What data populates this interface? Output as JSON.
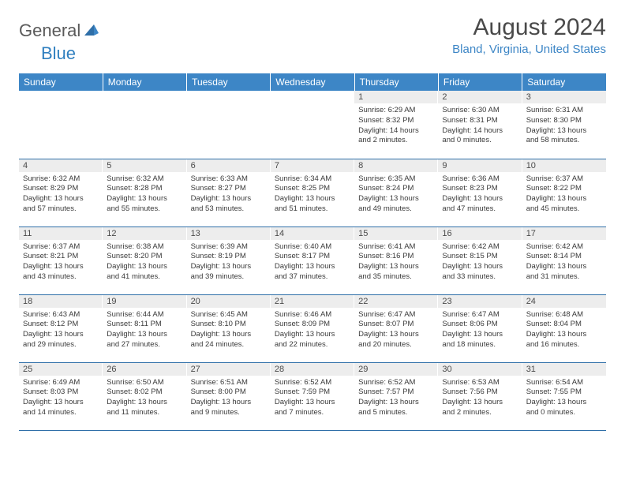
{
  "brand": {
    "part1": "General",
    "part2": "Blue"
  },
  "title": "August 2024",
  "location": "Bland, Virginia, United States",
  "colors": {
    "header_bg": "#3d86c6",
    "header_text": "#ffffff",
    "daynum_bg": "#ededed",
    "row_border": "#2f6fa8",
    "title_color": "#4a4a4a",
    "location_color": "#3d86c6",
    "logo_gray": "#5a5a5a",
    "logo_blue": "#2f7fbf"
  },
  "day_headers": [
    "Sunday",
    "Monday",
    "Tuesday",
    "Wednesday",
    "Thursday",
    "Friday",
    "Saturday"
  ],
  "weeks": [
    [
      {
        "n": "",
        "lines": []
      },
      {
        "n": "",
        "lines": []
      },
      {
        "n": "",
        "lines": []
      },
      {
        "n": "",
        "lines": []
      },
      {
        "n": "1",
        "lines": [
          "Sunrise: 6:29 AM",
          "Sunset: 8:32 PM",
          "Daylight: 14 hours",
          "and 2 minutes."
        ]
      },
      {
        "n": "2",
        "lines": [
          "Sunrise: 6:30 AM",
          "Sunset: 8:31 PM",
          "Daylight: 14 hours",
          "and 0 minutes."
        ]
      },
      {
        "n": "3",
        "lines": [
          "Sunrise: 6:31 AM",
          "Sunset: 8:30 PM",
          "Daylight: 13 hours",
          "and 58 minutes."
        ]
      }
    ],
    [
      {
        "n": "4",
        "lines": [
          "Sunrise: 6:32 AM",
          "Sunset: 8:29 PM",
          "Daylight: 13 hours",
          "and 57 minutes."
        ]
      },
      {
        "n": "5",
        "lines": [
          "Sunrise: 6:32 AM",
          "Sunset: 8:28 PM",
          "Daylight: 13 hours",
          "and 55 minutes."
        ]
      },
      {
        "n": "6",
        "lines": [
          "Sunrise: 6:33 AM",
          "Sunset: 8:27 PM",
          "Daylight: 13 hours",
          "and 53 minutes."
        ]
      },
      {
        "n": "7",
        "lines": [
          "Sunrise: 6:34 AM",
          "Sunset: 8:25 PM",
          "Daylight: 13 hours",
          "and 51 minutes."
        ]
      },
      {
        "n": "8",
        "lines": [
          "Sunrise: 6:35 AM",
          "Sunset: 8:24 PM",
          "Daylight: 13 hours",
          "and 49 minutes."
        ]
      },
      {
        "n": "9",
        "lines": [
          "Sunrise: 6:36 AM",
          "Sunset: 8:23 PM",
          "Daylight: 13 hours",
          "and 47 minutes."
        ]
      },
      {
        "n": "10",
        "lines": [
          "Sunrise: 6:37 AM",
          "Sunset: 8:22 PM",
          "Daylight: 13 hours",
          "and 45 minutes."
        ]
      }
    ],
    [
      {
        "n": "11",
        "lines": [
          "Sunrise: 6:37 AM",
          "Sunset: 8:21 PM",
          "Daylight: 13 hours",
          "and 43 minutes."
        ]
      },
      {
        "n": "12",
        "lines": [
          "Sunrise: 6:38 AM",
          "Sunset: 8:20 PM",
          "Daylight: 13 hours",
          "and 41 minutes."
        ]
      },
      {
        "n": "13",
        "lines": [
          "Sunrise: 6:39 AM",
          "Sunset: 8:19 PM",
          "Daylight: 13 hours",
          "and 39 minutes."
        ]
      },
      {
        "n": "14",
        "lines": [
          "Sunrise: 6:40 AM",
          "Sunset: 8:17 PM",
          "Daylight: 13 hours",
          "and 37 minutes."
        ]
      },
      {
        "n": "15",
        "lines": [
          "Sunrise: 6:41 AM",
          "Sunset: 8:16 PM",
          "Daylight: 13 hours",
          "and 35 minutes."
        ]
      },
      {
        "n": "16",
        "lines": [
          "Sunrise: 6:42 AM",
          "Sunset: 8:15 PM",
          "Daylight: 13 hours",
          "and 33 minutes."
        ]
      },
      {
        "n": "17",
        "lines": [
          "Sunrise: 6:42 AM",
          "Sunset: 8:14 PM",
          "Daylight: 13 hours",
          "and 31 minutes."
        ]
      }
    ],
    [
      {
        "n": "18",
        "lines": [
          "Sunrise: 6:43 AM",
          "Sunset: 8:12 PM",
          "Daylight: 13 hours",
          "and 29 minutes."
        ]
      },
      {
        "n": "19",
        "lines": [
          "Sunrise: 6:44 AM",
          "Sunset: 8:11 PM",
          "Daylight: 13 hours",
          "and 27 minutes."
        ]
      },
      {
        "n": "20",
        "lines": [
          "Sunrise: 6:45 AM",
          "Sunset: 8:10 PM",
          "Daylight: 13 hours",
          "and 24 minutes."
        ]
      },
      {
        "n": "21",
        "lines": [
          "Sunrise: 6:46 AM",
          "Sunset: 8:09 PM",
          "Daylight: 13 hours",
          "and 22 minutes."
        ]
      },
      {
        "n": "22",
        "lines": [
          "Sunrise: 6:47 AM",
          "Sunset: 8:07 PM",
          "Daylight: 13 hours",
          "and 20 minutes."
        ]
      },
      {
        "n": "23",
        "lines": [
          "Sunrise: 6:47 AM",
          "Sunset: 8:06 PM",
          "Daylight: 13 hours",
          "and 18 minutes."
        ]
      },
      {
        "n": "24",
        "lines": [
          "Sunrise: 6:48 AM",
          "Sunset: 8:04 PM",
          "Daylight: 13 hours",
          "and 16 minutes."
        ]
      }
    ],
    [
      {
        "n": "25",
        "lines": [
          "Sunrise: 6:49 AM",
          "Sunset: 8:03 PM",
          "Daylight: 13 hours",
          "and 14 minutes."
        ]
      },
      {
        "n": "26",
        "lines": [
          "Sunrise: 6:50 AM",
          "Sunset: 8:02 PM",
          "Daylight: 13 hours",
          "and 11 minutes."
        ]
      },
      {
        "n": "27",
        "lines": [
          "Sunrise: 6:51 AM",
          "Sunset: 8:00 PM",
          "Daylight: 13 hours",
          "and 9 minutes."
        ]
      },
      {
        "n": "28",
        "lines": [
          "Sunrise: 6:52 AM",
          "Sunset: 7:59 PM",
          "Daylight: 13 hours",
          "and 7 minutes."
        ]
      },
      {
        "n": "29",
        "lines": [
          "Sunrise: 6:52 AM",
          "Sunset: 7:57 PM",
          "Daylight: 13 hours",
          "and 5 minutes."
        ]
      },
      {
        "n": "30",
        "lines": [
          "Sunrise: 6:53 AM",
          "Sunset: 7:56 PM",
          "Daylight: 13 hours",
          "and 2 minutes."
        ]
      },
      {
        "n": "31",
        "lines": [
          "Sunrise: 6:54 AM",
          "Sunset: 7:55 PM",
          "Daylight: 13 hours",
          "and 0 minutes."
        ]
      }
    ]
  ]
}
